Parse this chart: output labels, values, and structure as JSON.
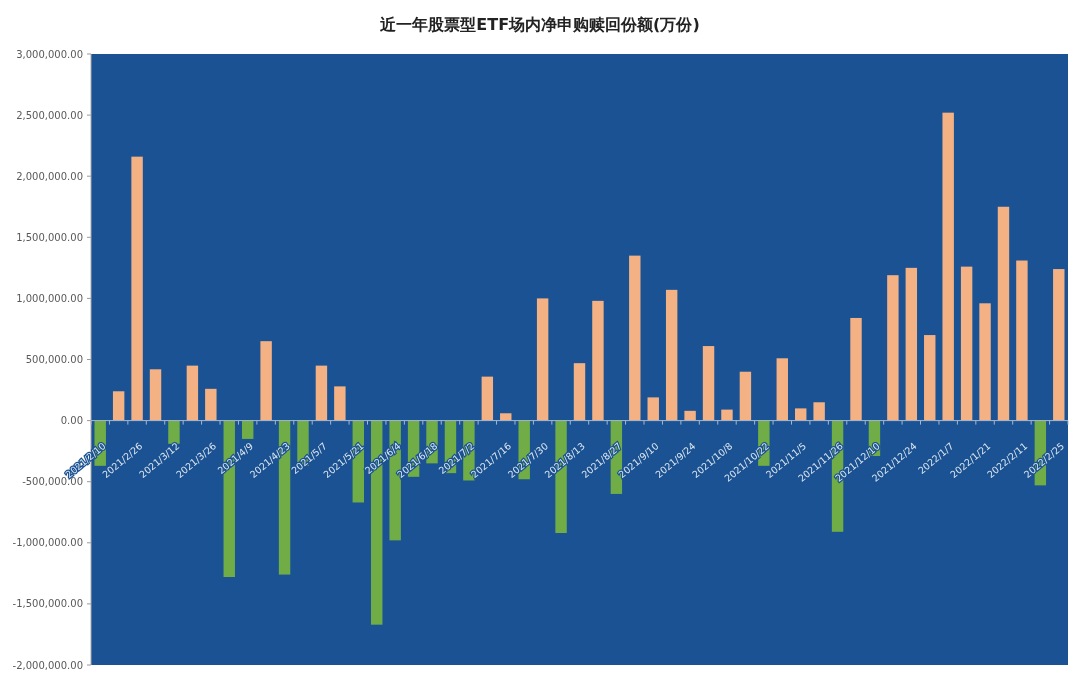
{
  "chart_data": {
    "type": "bar",
    "title": "近一年股票型ETF场内净申购赎回份额(万份)",
    "categories": [
      "2021/2/10",
      null,
      "2021/2/26",
      null,
      "2021/3/12",
      null,
      "2021/3/26",
      null,
      "2021/4/9",
      null,
      "2021/4/23",
      null,
      "2021/5/7",
      null,
      "2021/5/21",
      null,
      "2021/6/4",
      null,
      "2021/6/18",
      null,
      "2021/7/2",
      null,
      "2021/7/16",
      null,
      "2021/7/30",
      null,
      "2021/8/13",
      null,
      "2021/8/27",
      null,
      "2021/9/10",
      null,
      "2021/9/24",
      null,
      "2021/10/8",
      null,
      "2021/10/22",
      null,
      "2021/11/5",
      null,
      "2021/11/26",
      null,
      "2021/12/10",
      null,
      "2021/12/24",
      null,
      "2022/1/7",
      null,
      "2022/1/21",
      null,
      "2022/2/11",
      null,
      "2022/2/25"
    ],
    "values": [
      -370000,
      240000,
      2160000,
      420000,
      -190000,
      450000,
      260000,
      -1280000,
      -150000,
      650000,
      -1260000,
      -370000,
      450000,
      280000,
      -670000,
      -1670000,
      -980000,
      -460000,
      -350000,
      -430000,
      -490000,
      360000,
      60000,
      -480000,
      1000000,
      -920000,
      470000,
      980000,
      -600000,
      1350000,
      190000,
      1070000,
      80000,
      610000,
      90000,
      400000,
      -370000,
      510000,
      100000,
      150000,
      -910000,
      840000,
      -290000,
      1190000,
      1250000,
      700000,
      2520000,
      1260000,
      960000,
      1750000,
      1310000,
      -530000,
      1240000
    ],
    "colors": [
      "#70ad47",
      "#f4b183",
      "#f4b183",
      "#f4b183",
      "#70ad47",
      "#f4b183",
      "#f4b183",
      "#70ad47",
      "#70ad47",
      "#f4b183",
      "#70ad47",
      "#70ad47",
      "#f4b183",
      "#f4b183",
      "#70ad47",
      "#70ad47",
      "#70ad47",
      "#70ad47",
      "#70ad47",
      "#70ad47",
      "#70ad47",
      "#f4b183",
      "#f4b183",
      "#70ad47",
      "#f4b183",
      "#70ad47",
      "#f4b183",
      "#f4b183",
      "#70ad47",
      "#f4b183",
      "#f4b183",
      "#f4b183",
      "#f4b183",
      "#f4b183",
      "#f4b183",
      "#f4b183",
      "#70ad47",
      "#f4b183",
      "#f4b183",
      "#f4b183",
      "#70ad47",
      "#f4b183",
      "#70ad47",
      "#f4b183",
      "#f4b183",
      "#f4b183",
      "#f4b183",
      "#f4b183",
      "#f4b183",
      "#f4b183",
      "#f4b183",
      "#70ad47",
      "#f4b183"
    ],
    "ylim": [
      -2000000,
      3000000
    ],
    "yticks": [
      {
        "value": -2000000,
        "label": "-2,000,000.00"
      },
      {
        "value": -1500000,
        "label": "-1,500,000.00"
      },
      {
        "value": -1000000,
        "label": "-1,000,000.00"
      },
      {
        "value": -500000,
        "label": "-500,000.00"
      },
      {
        "value": 0,
        "label": "0.00"
      },
      {
        "value": 500000,
        "label": "500,000.00"
      },
      {
        "value": 1000000,
        "label": "1,000,000.00"
      },
      {
        "value": 1500000,
        "label": "1,500,000.00"
      },
      {
        "value": 2000000,
        "label": "2,000,000.00"
      },
      {
        "value": 2500000,
        "label": "2,500,000.00"
      },
      {
        "value": 3000000,
        "label": "3,000,000.00"
      }
    ],
    "grid": false
  }
}
